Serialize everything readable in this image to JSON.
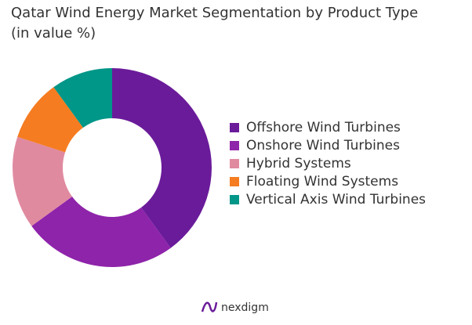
{
  "chart_data": {
    "type": "pie",
    "title": "Qatar Wind Energy Market Segmentation by Product Type (in value %)",
    "categories": [
      "Offshore Wind Turbines",
      "Onshore Wind Turbines",
      "Hybrid Systems",
      "Floating Wind Systems",
      "Vertical Axis Wind Turbines"
    ],
    "values": [
      40,
      25,
      15,
      10,
      10
    ],
    "colors": [
      "#6a1b9a",
      "#8e24aa",
      "#e08aa0",
      "#f57c20",
      "#009688"
    ],
    "donut": true,
    "legend": "right"
  },
  "brand": "nexdigm"
}
